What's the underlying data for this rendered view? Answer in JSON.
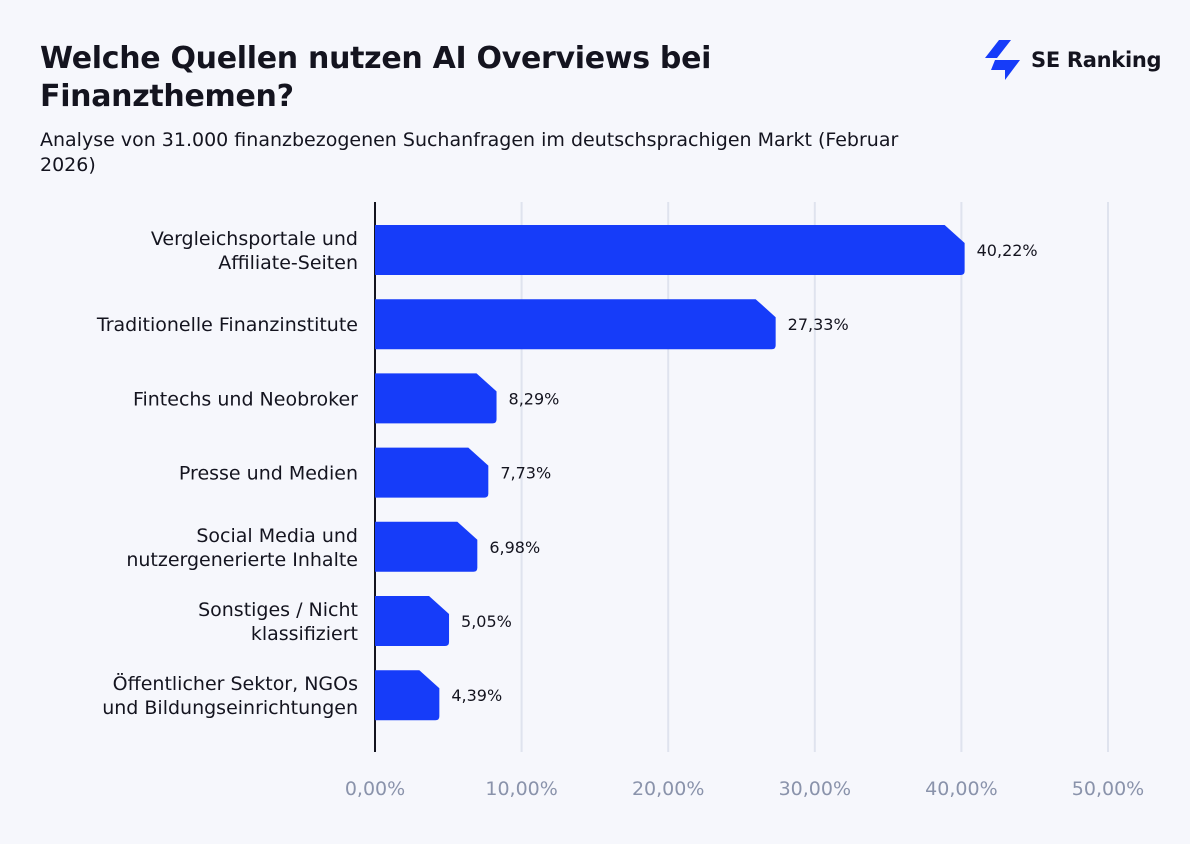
{
  "title": "Welche Quellen nutzen AI Overviews bei Finanzthemen?",
  "subtitle": "Analyse von 31.000 finanzbezogenen Suchanfragen im deutschsprachigen Markt (Februar 2026)",
  "logo": {
    "text": "SE Ranking",
    "icon": "se-ranking-bolt-icon"
  },
  "colors": {
    "bar": "#163cf9",
    "background": "#f6f7fc",
    "grid": "#dfe3ee",
    "tick": "#8a93ab"
  },
  "chart_data": {
    "type": "bar",
    "orientation": "horizontal",
    "categories": [
      [
        "Vergleichsportale und",
        "Affiliate-Seiten"
      ],
      [
        "Traditionelle Finanzinstitute"
      ],
      [
        "Fintechs und Neobroker"
      ],
      [
        "Presse und Medien"
      ],
      [
        "Social Media und",
        "nutzergenerierte Inhalte"
      ],
      [
        "Sonstiges / Nicht",
        "klassifiziert"
      ],
      [
        "Öffentlicher Sektor, NGOs",
        "und Bildungseinrichtungen"
      ]
    ],
    "values": [
      40.22,
      27.33,
      8.29,
      7.73,
      6.98,
      5.05,
      4.39
    ],
    "value_labels": [
      "40,22%",
      "27,33%",
      "8,29%",
      "7,73%",
      "6,98%",
      "5,05%",
      "4,39%"
    ],
    "xlim": [
      0,
      50
    ],
    "xticks": [
      0,
      10,
      20,
      30,
      40,
      50
    ],
    "xtick_labels": [
      "0,00%",
      "10,00%",
      "20,00%",
      "30,00%",
      "40,00%",
      "50,00%"
    ],
    "grid": true,
    "legend": "none"
  }
}
